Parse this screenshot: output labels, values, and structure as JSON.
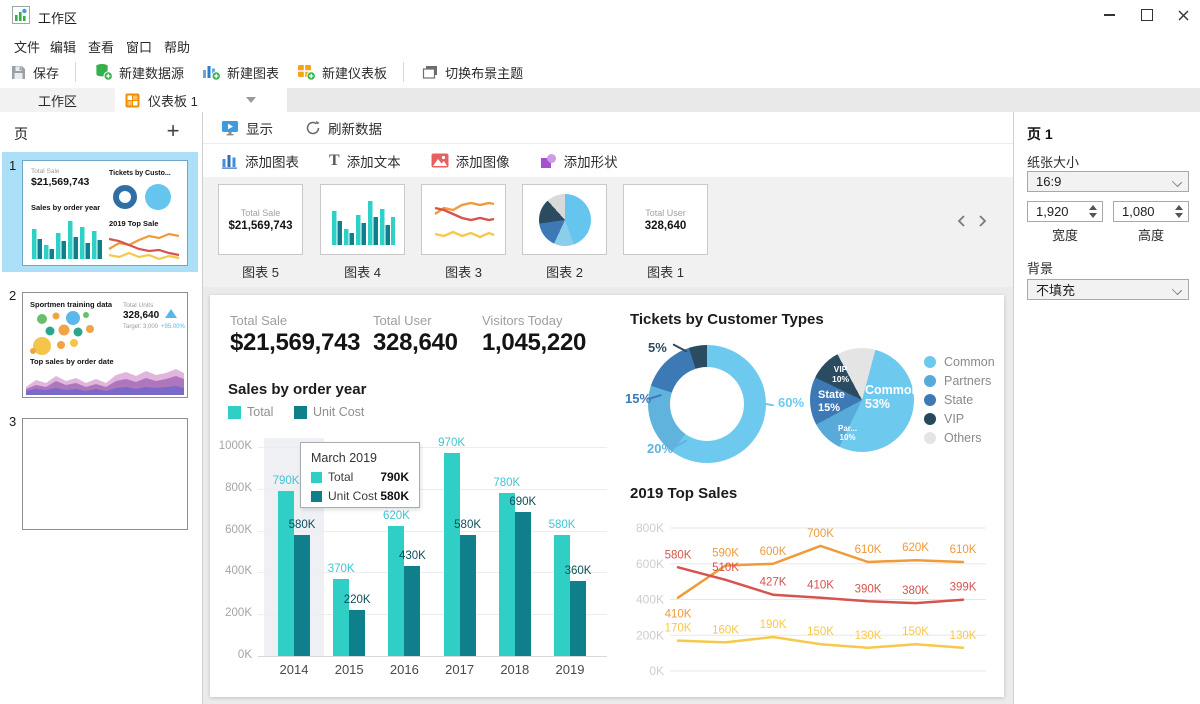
{
  "window": {
    "title": "工作区"
  },
  "menu": [
    "文件",
    "编辑",
    "查看",
    "窗口",
    "帮助"
  ],
  "toolbar": {
    "save": "保存",
    "new_datasource": "新建数据源",
    "new_chart": "新建图表",
    "new_dashboard": "新建仪表板",
    "switch_theme": "切换布景主题"
  },
  "tabs": {
    "workspace": "工作区",
    "dashboard": "仪表板 1"
  },
  "pages_panel": {
    "title": "页",
    "page_numbers": [
      "1",
      "2",
      "3"
    ],
    "thumb1": {
      "kpi_label": "Total Sale",
      "kpi_value": "$21,569,743",
      "tickets_title": "Tickets by Custo...",
      "bar_title": "Sales by order year",
      "line_title": "2019 Top Sale"
    },
    "thumb2": {
      "title": "Sportmen training data",
      "units_label": "Total Units",
      "units_value": "328,640",
      "target": "Target: 3,000",
      "delta": "+95.00%",
      "area_title": "Top sales by order date"
    }
  },
  "canvas_toolbar": {
    "show": "显示",
    "refresh": "刷新数据",
    "add_chart": "添加图表",
    "add_text": "添加文本",
    "add_image": "添加图像",
    "add_shape": "添加形状"
  },
  "gallery": {
    "captions": [
      "图表 5",
      "图表 4",
      "图表 3",
      "图表 2",
      "图表 1"
    ],
    "card5": {
      "label": "Total Sale",
      "value": "$21,569,743"
    },
    "card1": {
      "label": "Total User",
      "value": "328,640"
    }
  },
  "dashboard": {
    "kpis": [
      {
        "label": "Total Sale",
        "value": "$21,569,743"
      },
      {
        "label": "Total User",
        "value": "328,640"
      },
      {
        "label": "Visitors Today",
        "value": "1,045,220"
      }
    ],
    "tooltip": {
      "title": "March 2019",
      "rows": [
        {
          "name": "Total",
          "value": "790K",
          "color": "#2fcfc5"
        },
        {
          "name": "Unit Cost",
          "value": "580K",
          "color": "#0e7f8b"
        }
      ]
    }
  },
  "ui_colors": {
    "selection_blue": "#ace0f8",
    "tab_orange": "#ef8f00",
    "accent_blue": "#3f9be0"
  },
  "chart_data": [
    {
      "id": "sales_by_year",
      "type": "bar",
      "title": "Sales by order year",
      "categories": [
        "2014",
        "2015",
        "2016",
        "2017",
        "2018",
        "2019"
      ],
      "series": [
        {
          "name": "Total",
          "color": "#2fcfc5",
          "label_color": "#43c4d2",
          "values": [
            790,
            370,
            620,
            970,
            780,
            580
          ]
        },
        {
          "name": "Unit Cost",
          "color": "#0e7f8b",
          "label_color": "#0b4f5c",
          "values": [
            580,
            220,
            430,
            580,
            690,
            360
          ]
        }
      ],
      "unit": "K",
      "yticks": [
        "0K",
        "200K",
        "400K",
        "600K",
        "800K",
        "1000K"
      ],
      "ylim": [
        0,
        1000
      ],
      "grid": true,
      "highlighted_category": "2014"
    },
    {
      "id": "tickets_donut",
      "type": "pie",
      "title": "Tickets by Customer Types",
      "slices": [
        {
          "label": "60%",
          "value": 60,
          "color": "#6ec9ef"
        },
        {
          "label": "20%",
          "value": 20,
          "color": "#5fb3dd"
        },
        {
          "label": "15%",
          "value": 15,
          "color": "#3d79b5"
        },
        {
          "label": "5%",
          "value": 5,
          "color": "#2b4c60"
        }
      ],
      "donut": true
    },
    {
      "id": "tickets_pie",
      "type": "pie",
      "slices": [
        {
          "name": "Common",
          "pct": "53%",
          "value": 53,
          "color": "#6ec9ef"
        },
        {
          "name": "Par...",
          "pct": "10%",
          "value": 10,
          "color": "#58abd8"
        },
        {
          "name": "State",
          "pct": "15%",
          "value": 15,
          "color": "#3d79b5"
        },
        {
          "name": "VIP",
          "pct": "10%",
          "value": 10,
          "color": "#2b4c60"
        },
        {
          "name": "Others",
          "pct": "",
          "value": 12,
          "color": "#e4e4e4"
        }
      ],
      "legend": [
        {
          "label": "Common",
          "color": "#6ec9ef"
        },
        {
          "label": "Partners",
          "color": "#58abd8"
        },
        {
          "label": "State",
          "color": "#3d79b5"
        },
        {
          "label": "VIP",
          "color": "#24485c"
        },
        {
          "label": "Others",
          "color": "#e4e4e4"
        }
      ],
      "legend_position": "right"
    },
    {
      "id": "top_sales",
      "type": "line",
      "title": "2019 Top Sales",
      "x_points": 7,
      "yticks": [
        "0K",
        "200K",
        "400K",
        "600K",
        "800K"
      ],
      "ylim": [
        0,
        800
      ],
      "grid": true,
      "series": [
        {
          "name": "orange",
          "color": "#f09a3a",
          "values": [
            410,
            590,
            600,
            700,
            610,
            620,
            610
          ]
        },
        {
          "name": "red",
          "color": "#d5544f",
          "values": [
            580,
            510,
            427,
            410,
            390,
            380,
            399
          ]
        },
        {
          "name": "yellow",
          "color": "#f6c84c",
          "values": [
            170,
            160,
            190,
            150,
            130,
            150,
            130
          ]
        }
      ]
    }
  ],
  "properties_panel": {
    "title": "页 1",
    "paper_size_label": "纸张大小",
    "paper_size_value": "16:9",
    "width_value": "1,920",
    "width_label": "宽度",
    "height_value": "1,080",
    "height_label": "高度",
    "background_label": "背景",
    "background_value": "不填充"
  }
}
